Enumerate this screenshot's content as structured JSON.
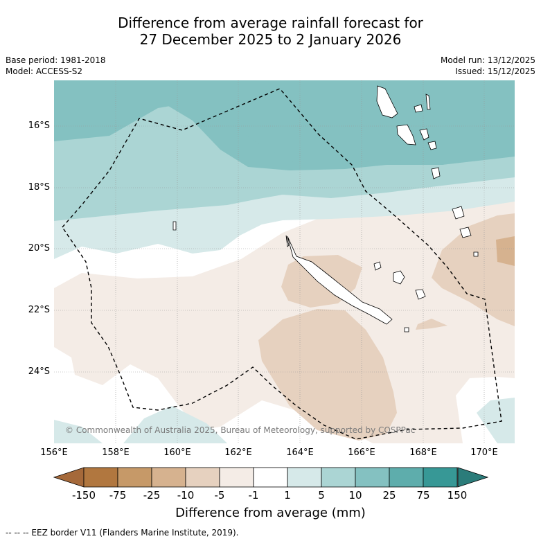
{
  "title": {
    "line1": "Difference from average rainfall forecast for",
    "line2": "27 December 2025 to 2 January 2026"
  },
  "meta": {
    "base_period": "Base period: 1981-2018",
    "model": "Model: ACCESS-S2",
    "model_run": "Model run: 13/12/2025",
    "issued": "Issued: 15/12/2025"
  },
  "map": {
    "copyright": "© Commonwealth of Australia 2025, Bureau of Meteorology, supported by COSPPac",
    "lat_labels": [
      "16°S",
      "18°S",
      "20°S",
      "22°S",
      "24°S"
    ],
    "lon_labels": [
      "156°E",
      "158°E",
      "160°E",
      "162°E",
      "164°E",
      "166°E",
      "168°E",
      "170°E"
    ],
    "landmasses": [
      "New Caledonia",
      "Loyalty Islands",
      "Vanuatu"
    ],
    "eez_line_style": "dashed"
  },
  "colorbar": {
    "title": "Difference from average (mm)",
    "tick_labels": [
      "-150",
      "-75",
      "-25",
      "-10",
      "-5",
      "-1",
      "1",
      "5",
      "10",
      "25",
      "75",
      "150"
    ],
    "colors": [
      "#a5693a",
      "#b1773f",
      "#c69968",
      "#d6b28f",
      "#e6d1bf",
      "#f4ece6",
      "#ffffff",
      "#d6e9e9",
      "#abd5d4",
      "#84c1c1",
      "#5eadac",
      "#379896",
      "#2b7c7a"
    ]
  },
  "legend": {
    "text": "--  --  -- EEZ border V11 (Flanders Marine Institute, 2019)."
  }
}
